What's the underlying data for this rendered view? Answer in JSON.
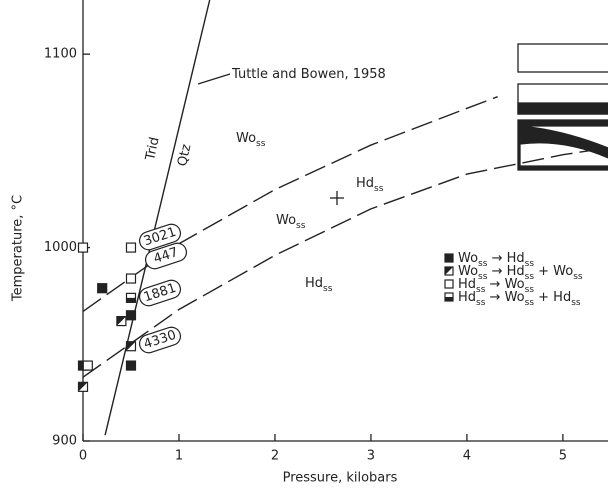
{
  "chart_data": {
    "type": "scatter",
    "xlabel": "Pressure, kilobars",
    "ylabel": "Temperature, °C",
    "xlim": [
      0,
      5.47
    ],
    "ylim": [
      900,
      1128
    ],
    "xticks": [
      0,
      1,
      2,
      3,
      4,
      5
    ],
    "yticks": [
      900,
      1000,
      1100
    ],
    "series": [
      {
        "name": "Woss → Hdss",
        "marker": "filled",
        "color": "#222",
        "x": [
          0,
          0.2,
          0.5,
          0.5
        ],
        "values": [
          939,
          979,
          965,
          939
        ]
      },
      {
        "name": "Woss → Hdss + Woss",
        "marker": "diagonal",
        "color": "#222",
        "x": [
          0,
          0.4,
          0.5
        ],
        "values": [
          928,
          962,
          949
        ]
      },
      {
        "name": "Hdss → Woss",
        "marker": "open",
        "color": "#222",
        "x": [
          0.05,
          0,
          0.5,
          0.5
        ],
        "values": [
          939,
          1000,
          1000,
          984
        ]
      },
      {
        "name": "Hdss → Woss + Hdss",
        "marker": "half",
        "color": "#222",
        "x": [
          0.5
        ],
        "values": [
          974
        ]
      }
    ],
    "lines": [
      {
        "dash": false,
        "x": [
          0.23,
          1.32
        ],
        "values": [
          903,
          1128
        ]
      },
      {
        "dash": true,
        "x": [
          0,
          1,
          2,
          3,
          4,
          4.32
        ],
        "values": [
          967,
          1002,
          1030,
          1053,
          1072,
          1078
        ]
      },
      {
        "dash": true,
        "x": [
          0,
          1,
          2,
          3,
          4,
          5,
          5.4
        ],
        "values": [
          933,
          968,
          996,
          1020,
          1038,
          1048,
          1051
        ]
      }
    ],
    "annotations": [
      "Tuttle and Bowen, 1958",
      "Trid",
      "Qtz",
      "Woss",
      "Hdss",
      "Woss",
      "Hdss"
    ],
    "run_numbers": [
      "3021",
      "447",
      "1881",
      "4330"
    ]
  }
}
